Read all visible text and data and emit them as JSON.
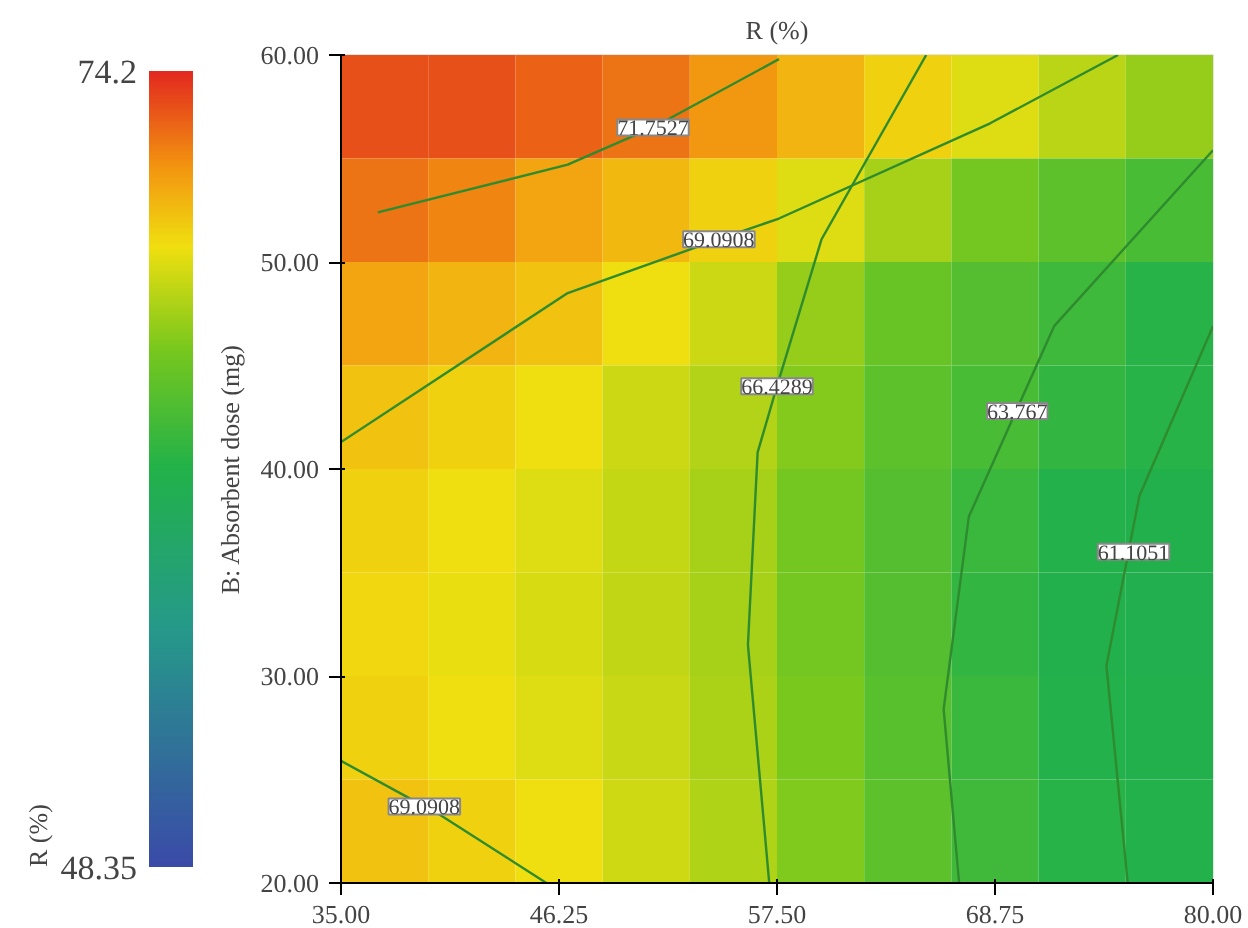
{
  "chart_data": {
    "type": "heatmap",
    "title": "R (%)",
    "ylabel": "B: Absorbent dose (mg)",
    "clabel": "R (%)",
    "xlim": [
      35,
      80
    ],
    "xticks": [
      {
        "value": 35,
        "label": "35.00"
      },
      {
        "value": 46.25,
        "label": "46.25"
      },
      {
        "value": 57.5,
        "label": "57.50"
      },
      {
        "value": 68.75,
        "label": "68.75"
      },
      {
        "value": 80,
        "label": "80.00"
      }
    ],
    "ylim": [
      20,
      60
    ],
    "yticks": [
      {
        "value": 20,
        "label": "20.00"
      },
      {
        "value": 30,
        "label": "30.00"
      },
      {
        "value": 40,
        "label": "40.00"
      },
      {
        "value": 50,
        "label": "50.00"
      },
      {
        "value": 60,
        "label": "60.00"
      }
    ],
    "clim": [
      48.35,
      74.2
    ],
    "cticks": [
      48.35,
      74.2
    ],
    "cells": [
      [
        73,
        73,
        72.5,
        72,
        71,
        70,
        69,
        68,
        67,
        66
      ],
      [
        72,
        71.5,
        70.5,
        69.8,
        69,
        68,
        66.5,
        65,
        64,
        63
      ],
      [
        70.5,
        70,
        69.5,
        68.5,
        67.5,
        66,
        64.5,
        63.5,
        62.5,
        61.5
      ],
      [
        69.5,
        69,
        68.5,
        67.5,
        66.8,
        65.5,
        64,
        63,
        62,
        61.5
      ],
      [
        69,
        68.5,
        68,
        67.3,
        66.5,
        65,
        63.5,
        62.3,
        61.2,
        61
      ],
      [
        68.8,
        68.3,
        67.8,
        67.2,
        66.5,
        65,
        63.5,
        62,
        61,
        60.8
      ],
      [
        69,
        68.5,
        68,
        67.4,
        66.6,
        65.2,
        63.7,
        62.3,
        61.2,
        61
      ],
      [
        69.5,
        69,
        68.5,
        67.6,
        66.7,
        65.4,
        64,
        62.6,
        61.5,
        61.2
      ]
    ],
    "series": [
      {
        "type": "line",
        "color": "#2e8b2e",
        "x": [
          36.9,
          46.7,
          51.1,
          57.6
        ],
        "values": [
          52.4,
          54.7,
          56.5,
          59.8
        ]
      },
      {
        "type": "line",
        "color": "#2e8b2e",
        "x": [
          35,
          46.7,
          54.5,
          57.6,
          68.5,
          75.1
        ],
        "values": [
          41.3,
          48.5,
          51.1,
          52.1,
          56.7,
          60
        ]
      },
      {
        "type": "line",
        "color": "#2e8b2e",
        "x": [
          65.2,
          59.8,
          57.5,
          56.5,
          56.0,
          57.1
        ],
        "values": [
          60,
          51.1,
          44,
          40.8,
          31.5,
          20
        ]
      },
      {
        "type": "line",
        "color": "#2e8b2e",
        "x": [
          80,
          71.8,
          67.4,
          66.1,
          66.9
        ],
        "values": [
          55.4,
          46.9,
          37.7,
          28.4,
          20
        ]
      },
      {
        "type": "line",
        "color": "#2e8b2e",
        "x": [
          80,
          76.2,
          74.5,
          75.6
        ],
        "values": [
          46.9,
          38.7,
          30.5,
          20
        ]
      },
      {
        "type": "line",
        "color": "#2e8b2e",
        "x": [
          35,
          39.3,
          40.1,
          45.6
        ],
        "values": [
          25.9,
          23.7,
          23.3,
          20
        ]
      }
    ],
    "annotations": [
      {
        "text": "71.7527",
        "x": 51.1,
        "y": 56.5
      },
      {
        "text": "69.0908",
        "x": 54.5,
        "y": 51.1
      },
      {
        "text": "66.4289",
        "x": 57.5,
        "y": 44
      },
      {
        "text": "63.767",
        "x": 69.9,
        "y": 42.8
      },
      {
        "text": "61.1051",
        "x": 75.9,
        "y": 36.0
      },
      {
        "text": "69.0908",
        "x": 39.3,
        "y": 23.7
      }
    ],
    "grid": false
  }
}
